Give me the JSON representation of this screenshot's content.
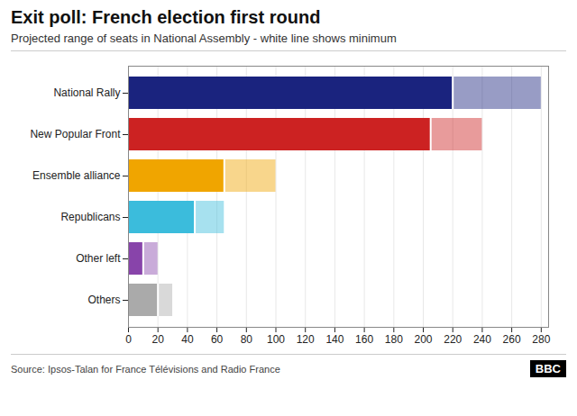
{
  "chart_data": {
    "type": "bar",
    "orientation": "horizontal",
    "title": "Exit poll: French election first round",
    "subtitle": "Projected range of seats in National Assembly - white line shows minimum",
    "source": "Source: Ipsos-Talan for France Télévisions and Radio France",
    "logo": "BBC",
    "categories": [
      "National Rally",
      "New Popular Front",
      "Ensemble alliance",
      "Republicans",
      "Other left",
      "Others"
    ],
    "values": [
      280,
      240,
      100,
      65,
      20,
      30
    ],
    "min_values": [
      220,
      205,
      65,
      45,
      10,
      20
    ],
    "colors": [
      "#1a237e",
      "#cc2222",
      "#f0a500",
      "#3bbcdc",
      "#8844aa",
      "#aaaaaa"
    ],
    "xlim": [
      0,
      285
    ],
    "xticks": [
      0,
      20,
      40,
      60,
      80,
      100,
      120,
      140,
      160,
      180,
      200,
      220,
      240,
      260,
      280
    ],
    "grid": true
  }
}
